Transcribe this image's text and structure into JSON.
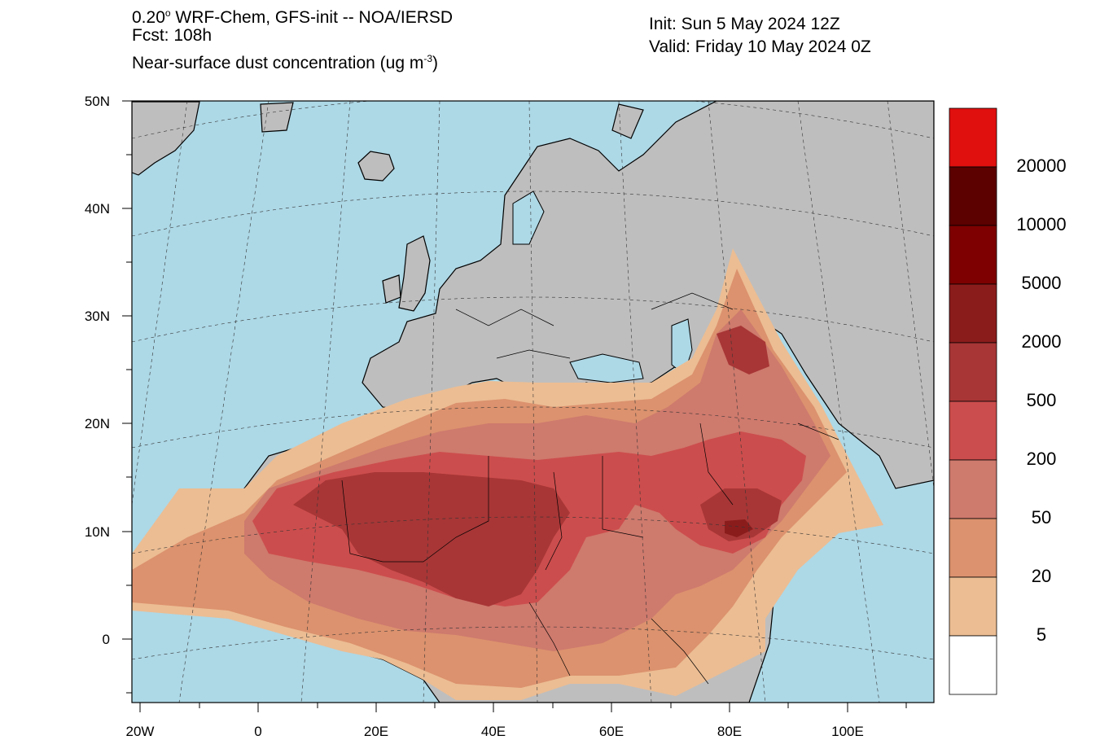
{
  "header": {
    "model_prefix": "0.20",
    "model_deg": "o",
    "model_rest": " WRF-Chem, GFS-init -- NOA/IERSD",
    "forecast": "Fcst: 108h",
    "variable_prefix": "Near-surface dust concentration (ug m",
    "variable_exp": "-3",
    "variable_suffix": ")",
    "init": "Init: Sun 5 May 2024  12Z",
    "valid": "Valid: Friday 10 May 2024  0Z"
  },
  "axes": {
    "lat_labels": [
      "50N",
      "40N",
      "30N",
      "20N",
      "10N",
      "0"
    ],
    "lon_labels": [
      "20W",
      "0",
      "20E",
      "40E",
      "60E",
      "80E",
      "100E"
    ]
  },
  "colorbar": {
    "levels": [
      "20000",
      "10000",
      "5000",
      "2000",
      "500",
      "200",
      "50",
      "20",
      "5"
    ],
    "colors": [
      "#e0100f",
      "#5c0000",
      "#7e0000",
      "#8b1c1c",
      "#a83636",
      "#cc4d4d",
      "#ce7a6d",
      "#dc926e",
      "#ecbd93",
      "#ffffff"
    ]
  },
  "map_colors": {
    "ocean": "#add8e6",
    "land": "#bebebe"
  }
}
